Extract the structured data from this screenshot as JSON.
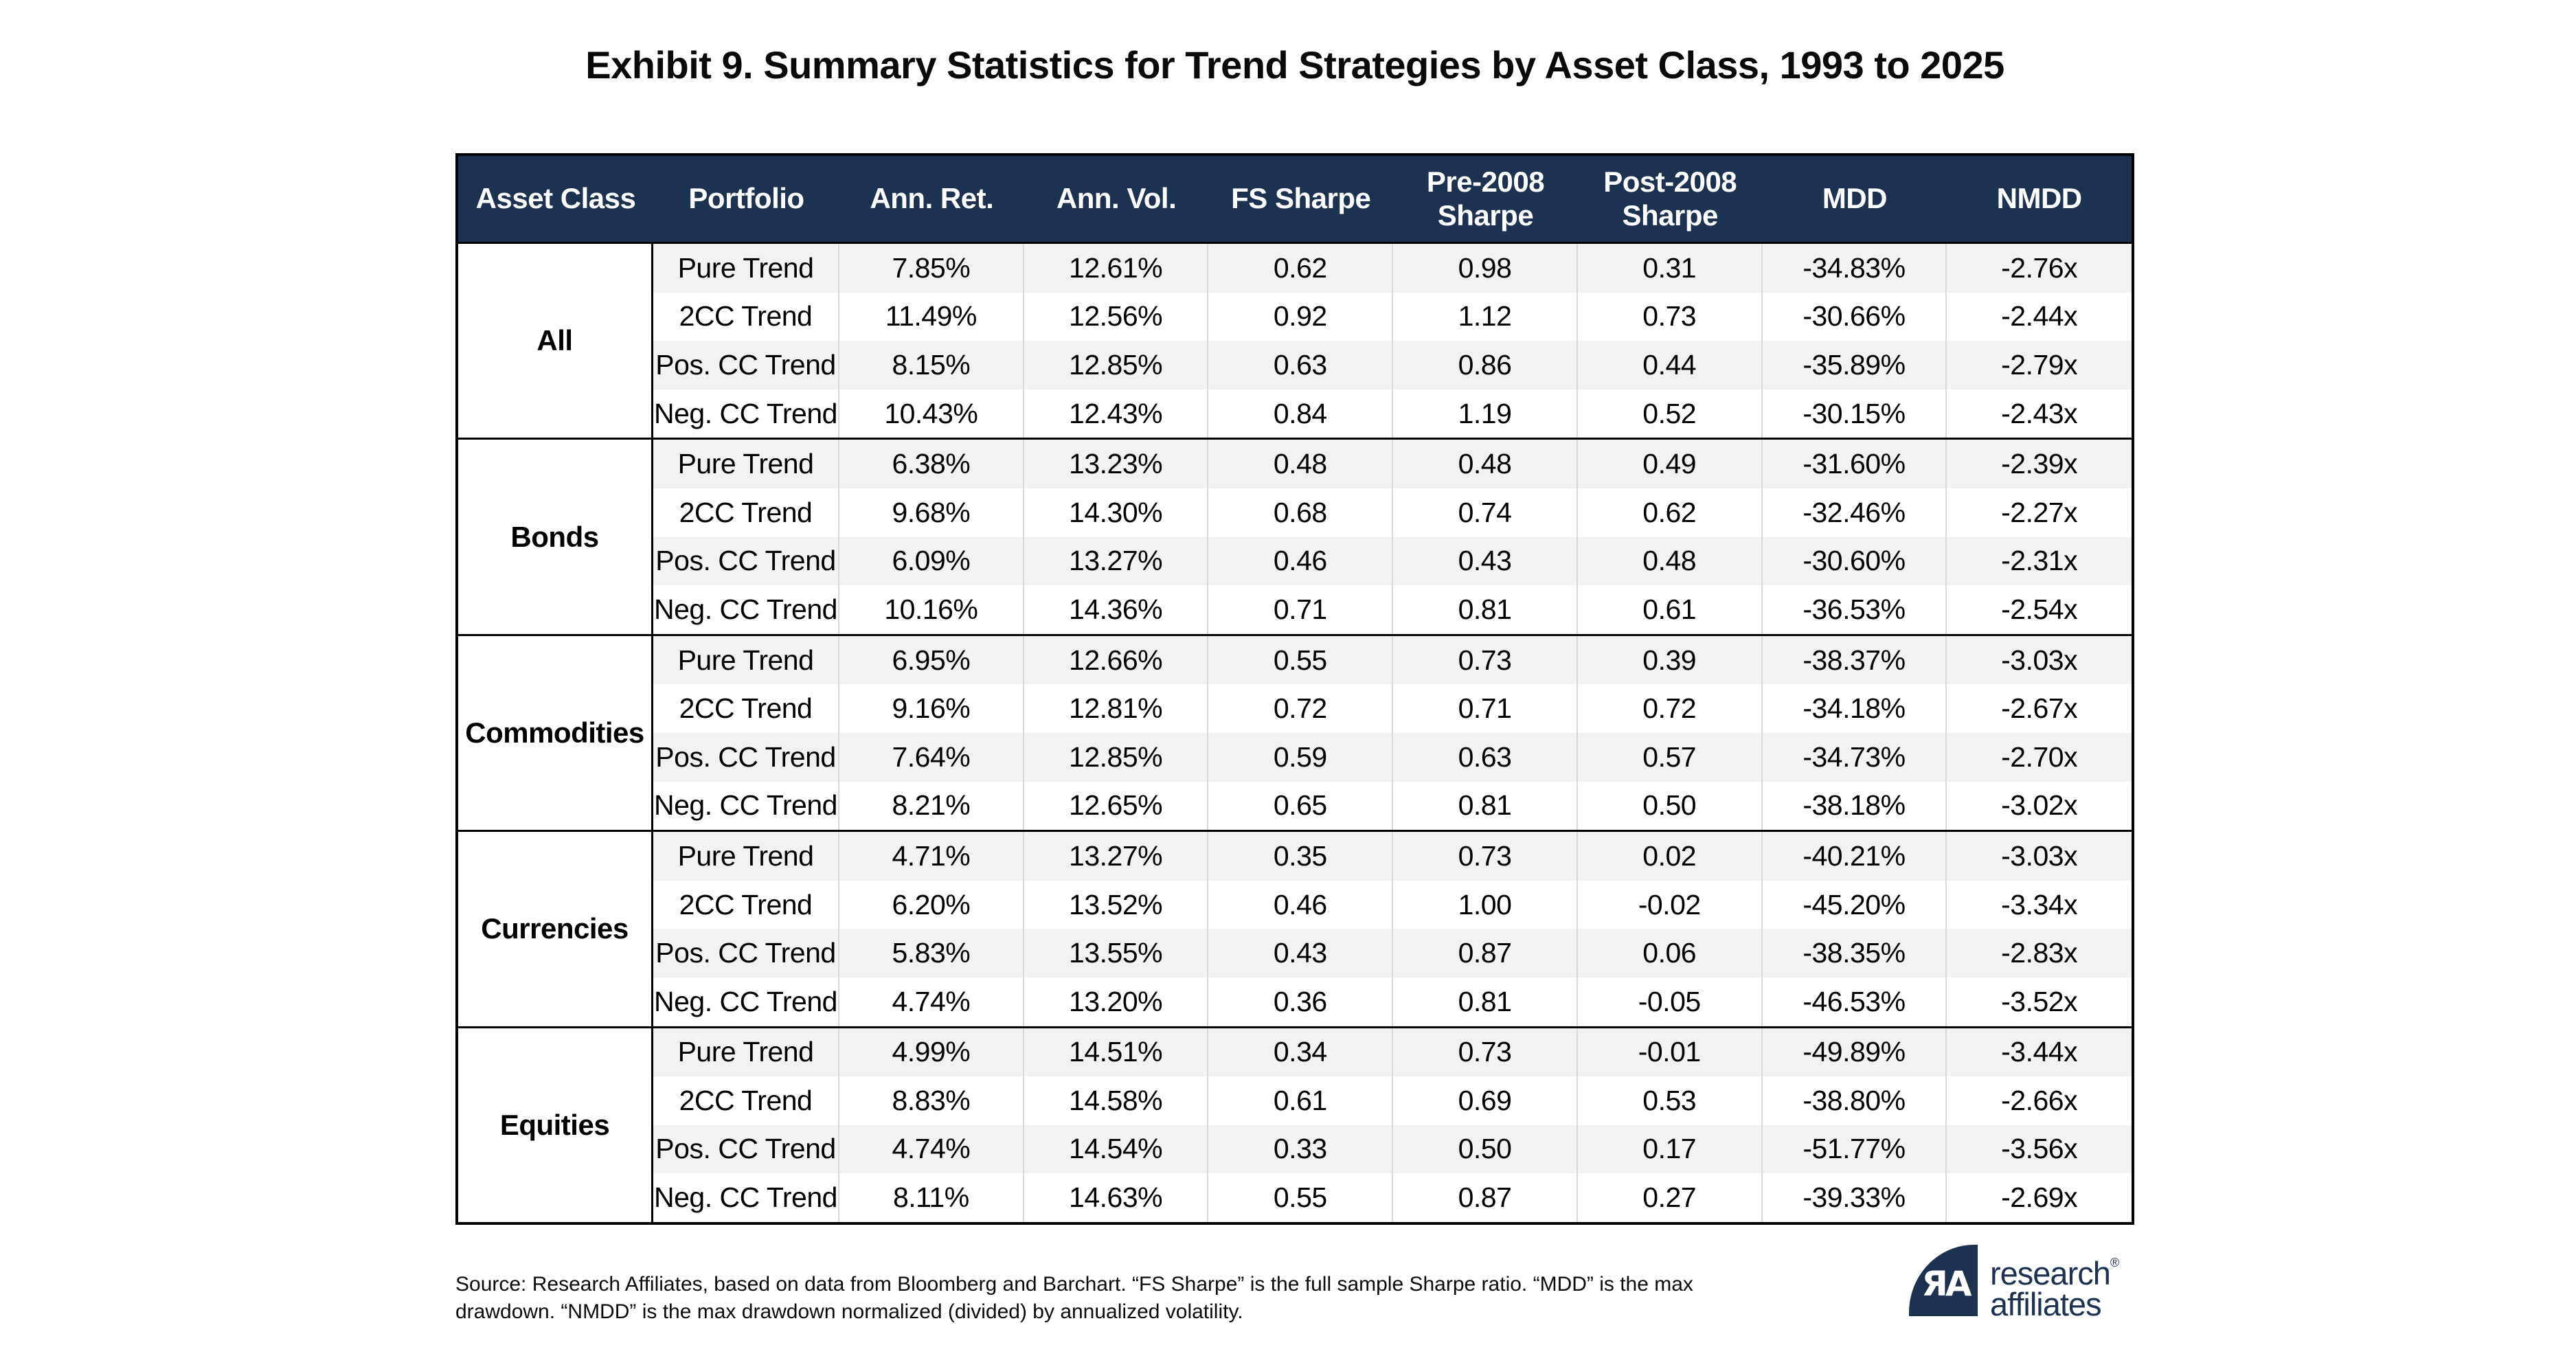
{
  "title": "Exhibit 9. Summary Statistics for Trend Strategies by Asset Class, 1993 to 2025",
  "table": {
    "columns": [
      "Asset Class",
      "Portfolio",
      "Ann. Ret.",
      "Ann. Vol.",
      "FS Sharpe",
      "Pre-2008\nSharpe",
      "Post-2008\nSharpe",
      "MDD",
      "NMDD"
    ],
    "groups": [
      {
        "asset_class": "All",
        "rows": [
          {
            "portfolio": "Pure Trend",
            "ann_ret": "7.85%",
            "ann_vol": "12.61%",
            "fs_sharpe": "0.62",
            "pre_2008_sharpe": "0.98",
            "post_2008_sharpe": "0.31",
            "mdd": "-34.83%",
            "nmdd": "-2.76x"
          },
          {
            "portfolio": "2CC Trend",
            "ann_ret": "11.49%",
            "ann_vol": "12.56%",
            "fs_sharpe": "0.92",
            "pre_2008_sharpe": "1.12",
            "post_2008_sharpe": "0.73",
            "mdd": "-30.66%",
            "nmdd": "-2.44x"
          },
          {
            "portfolio": "Pos. CC Trend",
            "ann_ret": "8.15%",
            "ann_vol": "12.85%",
            "fs_sharpe": "0.63",
            "pre_2008_sharpe": "0.86",
            "post_2008_sharpe": "0.44",
            "mdd": "-35.89%",
            "nmdd": "-2.79x"
          },
          {
            "portfolio": "Neg. CC Trend",
            "ann_ret": "10.43%",
            "ann_vol": "12.43%",
            "fs_sharpe": "0.84",
            "pre_2008_sharpe": "1.19",
            "post_2008_sharpe": "0.52",
            "mdd": "-30.15%",
            "nmdd": "-2.43x"
          }
        ]
      },
      {
        "asset_class": "Bonds",
        "rows": [
          {
            "portfolio": "Pure Trend",
            "ann_ret": "6.38%",
            "ann_vol": "13.23%",
            "fs_sharpe": "0.48",
            "pre_2008_sharpe": "0.48",
            "post_2008_sharpe": "0.49",
            "mdd": "-31.60%",
            "nmdd": "-2.39x"
          },
          {
            "portfolio": "2CC Trend",
            "ann_ret": "9.68%",
            "ann_vol": "14.30%",
            "fs_sharpe": "0.68",
            "pre_2008_sharpe": "0.74",
            "post_2008_sharpe": "0.62",
            "mdd": "-32.46%",
            "nmdd": "-2.27x"
          },
          {
            "portfolio": "Pos. CC Trend",
            "ann_ret": "6.09%",
            "ann_vol": "13.27%",
            "fs_sharpe": "0.46",
            "pre_2008_sharpe": "0.43",
            "post_2008_sharpe": "0.48",
            "mdd": "-30.60%",
            "nmdd": "-2.31x"
          },
          {
            "portfolio": "Neg. CC Trend",
            "ann_ret": "10.16%",
            "ann_vol": "14.36%",
            "fs_sharpe": "0.71",
            "pre_2008_sharpe": "0.81",
            "post_2008_sharpe": "0.61",
            "mdd": "-36.53%",
            "nmdd": "-2.54x"
          }
        ]
      },
      {
        "asset_class": "Commodities",
        "rows": [
          {
            "portfolio": "Pure Trend",
            "ann_ret": "6.95%",
            "ann_vol": "12.66%",
            "fs_sharpe": "0.55",
            "pre_2008_sharpe": "0.73",
            "post_2008_sharpe": "0.39",
            "mdd": "-38.37%",
            "nmdd": "-3.03x"
          },
          {
            "portfolio": "2CC Trend",
            "ann_ret": "9.16%",
            "ann_vol": "12.81%",
            "fs_sharpe": "0.72",
            "pre_2008_sharpe": "0.71",
            "post_2008_sharpe": "0.72",
            "mdd": "-34.18%",
            "nmdd": "-2.67x"
          },
          {
            "portfolio": "Pos. CC Trend",
            "ann_ret": "7.64%",
            "ann_vol": "12.85%",
            "fs_sharpe": "0.59",
            "pre_2008_sharpe": "0.63",
            "post_2008_sharpe": "0.57",
            "mdd": "-34.73%",
            "nmdd": "-2.70x"
          },
          {
            "portfolio": "Neg. CC Trend",
            "ann_ret": "8.21%",
            "ann_vol": "12.65%",
            "fs_sharpe": "0.65",
            "pre_2008_sharpe": "0.81",
            "post_2008_sharpe": "0.50",
            "mdd": "-38.18%",
            "nmdd": "-3.02x"
          }
        ]
      },
      {
        "asset_class": "Currencies",
        "rows": [
          {
            "portfolio": "Pure Trend",
            "ann_ret": "4.71%",
            "ann_vol": "13.27%",
            "fs_sharpe": "0.35",
            "pre_2008_sharpe": "0.73",
            "post_2008_sharpe": "0.02",
            "mdd": "-40.21%",
            "nmdd": "-3.03x"
          },
          {
            "portfolio": "2CC Trend",
            "ann_ret": "6.20%",
            "ann_vol": "13.52%",
            "fs_sharpe": "0.46",
            "pre_2008_sharpe": "1.00",
            "post_2008_sharpe": "-0.02",
            "mdd": "-45.20%",
            "nmdd": "-3.34x"
          },
          {
            "portfolio": "Pos. CC Trend",
            "ann_ret": "5.83%",
            "ann_vol": "13.55%",
            "fs_sharpe": "0.43",
            "pre_2008_sharpe": "0.87",
            "post_2008_sharpe": "0.06",
            "mdd": "-38.35%",
            "nmdd": "-2.83x"
          },
          {
            "portfolio": "Neg. CC Trend",
            "ann_ret": "4.74%",
            "ann_vol": "13.20%",
            "fs_sharpe": "0.36",
            "pre_2008_sharpe": "0.81",
            "post_2008_sharpe": "-0.05",
            "mdd": "-46.53%",
            "nmdd": "-3.52x"
          }
        ]
      },
      {
        "asset_class": "Equities",
        "rows": [
          {
            "portfolio": "Pure Trend",
            "ann_ret": "4.99%",
            "ann_vol": "14.51%",
            "fs_sharpe": "0.34",
            "pre_2008_sharpe": "0.73",
            "post_2008_sharpe": "-0.01",
            "mdd": "-49.89%",
            "nmdd": "-3.44x"
          },
          {
            "portfolio": "2CC Trend",
            "ann_ret": "8.83%",
            "ann_vol": "14.58%",
            "fs_sharpe": "0.61",
            "pre_2008_sharpe": "0.69",
            "post_2008_sharpe": "0.53",
            "mdd": "-38.80%",
            "nmdd": "-2.66x"
          },
          {
            "portfolio": "Pos. CC Trend",
            "ann_ret": "4.74%",
            "ann_vol": "14.54%",
            "fs_sharpe": "0.33",
            "pre_2008_sharpe": "0.50",
            "post_2008_sharpe": "0.17",
            "mdd": "-51.77%",
            "nmdd": "-3.56x"
          },
          {
            "portfolio": "Neg. CC Trend",
            "ann_ret": "8.11%",
            "ann_vol": "14.63%",
            "fs_sharpe": "0.55",
            "pre_2008_sharpe": "0.87",
            "post_2008_sharpe": "0.27",
            "mdd": "-39.33%",
            "nmdd": "-2.69x"
          }
        ]
      }
    ]
  },
  "footer": {
    "source_note": "Source: Research Affiliates, based on data from Bloomberg and Barchart. “FS Sharpe” is the full sample Sharpe ratio. “MDD” is the max drawdown. “NMDD” is the max drawdown normalized (divided) by annualized volatility."
  },
  "logo": {
    "monogram": "ЯA",
    "line1": "research",
    "registered": "®",
    "line2": "affiliates"
  },
  "colors": {
    "header_bg": "#1d3150",
    "stripe": "#f2f2f2",
    "divider": "#d9d9d9",
    "border": "#000000",
    "logo_navy": "#1d3150"
  }
}
